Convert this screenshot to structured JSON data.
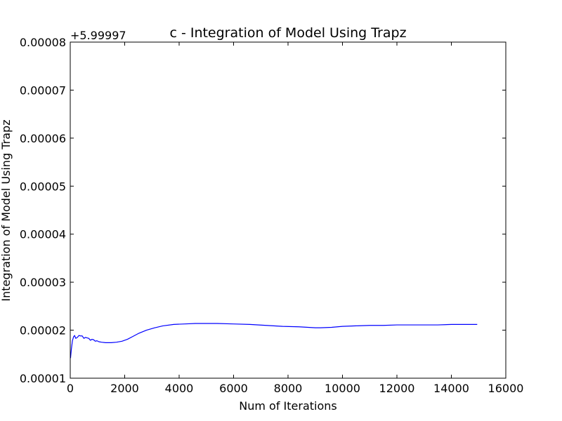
{
  "chart_data": {
    "type": "line",
    "title": "c - Integration of Model Using Trapz",
    "xlabel": "Num of Iterations",
    "ylabel": "Integration of Model Using Trapz",
    "y_offset_label": "+5.99997",
    "xlim": [
      0,
      16000
    ],
    "ylim": [
      1e-05,
      8e-05
    ],
    "grid": false,
    "x_ticks": [
      0,
      2000,
      4000,
      6000,
      8000,
      10000,
      12000,
      14000,
      16000
    ],
    "x_tick_labels": [
      "0",
      "2000",
      "4000",
      "6000",
      "8000",
      "10000",
      "12000",
      "14000",
      "16000"
    ],
    "y_ticks": [
      1e-05,
      2e-05,
      3e-05,
      4e-05,
      5e-05,
      6e-05,
      7e-05,
      8e-05
    ],
    "y_tick_labels": [
      "0.00001",
      "0.00002",
      "0.00003",
      "0.00004",
      "0.00005",
      "0.00006",
      "0.00007",
      "0.00008"
    ],
    "series": [
      {
        "color": "#0000ff",
        "x": [
          10,
          40,
          80,
          120,
          160,
          200,
          260,
          320,
          380,
          440,
          500,
          560,
          620,
          680,
          740,
          800,
          860,
          920,
          980,
          1050,
          1150,
          1300,
          1500,
          1700,
          1900,
          2100,
          2300,
          2500,
          2800,
          3100,
          3400,
          3800,
          4200,
          4600,
          5000,
          5400,
          6000,
          6600,
          7200,
          7800,
          8400,
          9000,
          9200,
          9600,
          10000,
          10500,
          11000,
          11500,
          12000,
          12500,
          13000,
          13500,
          14000,
          14500,
          14950
        ],
        "y": [
          1.42e-05,
          1.6e-05,
          1.78e-05,
          1.86e-05,
          1.89e-05,
          1.83e-05,
          1.85e-05,
          1.89e-05,
          1.88e-05,
          1.88e-05,
          1.83e-05,
          1.85e-05,
          1.84e-05,
          1.83e-05,
          1.79e-05,
          1.81e-05,
          1.8e-05,
          1.77e-05,
          1.78e-05,
          1.76e-05,
          1.75e-05,
          1.74e-05,
          1.74e-05,
          1.75e-05,
          1.77e-05,
          1.81e-05,
          1.87e-05,
          1.93e-05,
          2e-05,
          2.05e-05,
          2.09e-05,
          2.12e-05,
          2.13e-05,
          2.14e-05,
          2.14e-05,
          2.14e-05,
          2.13e-05,
          2.12e-05,
          2.1e-05,
          2.08e-05,
          2.07e-05,
          2.05e-05,
          2.05e-05,
          2.06e-05,
          2.08e-05,
          2.09e-05,
          2.1e-05,
          2.1e-05,
          2.11e-05,
          2.11e-05,
          2.11e-05,
          2.11e-05,
          2.12e-05,
          2.12e-05,
          2.12e-05
        ]
      }
    ]
  }
}
